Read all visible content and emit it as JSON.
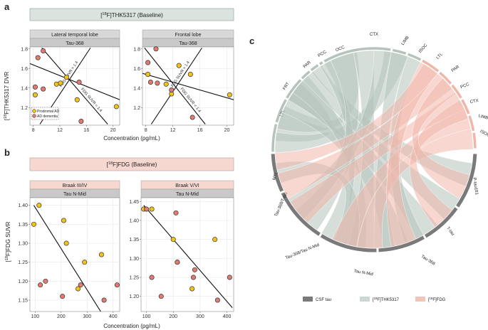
{
  "colors": {
    "prodromal": "#f2c21b",
    "dementia": "#e07b71",
    "strip_grey": "#d8d8d8",
    "strip_grey_dark": "#c9c9c9",
    "banner_grey": "#dbe3de",
    "banner_pink": "#f6d8d1",
    "chord_grey": "#b5c3bc",
    "chord_pink": "#f0b6a9",
    "csf_arc": "#7a7a7a"
  },
  "panel_labels": {
    "a": "a",
    "b": "b",
    "c": "c"
  },
  "panel_a": {
    "banner": "[18F]THK5317 (Baseline)",
    "y_label": "[18F]THK5317 DVR",
    "x_label": "Concentration (pg/mL)",
    "legend": {
      "prodromal": "Prodromal AD",
      "dementia": "AD dementia"
    }
  },
  "panel_b": {
    "banner": "[18F]FDG (Baseline)",
    "y_label": "[18F]FDG SUVR",
    "x_label": "Concentration (pg/mL)"
  },
  "panel_c": {
    "segments": [
      "CTX",
      "LIMB",
      "ISOC",
      "LTL",
      "PAR",
      "PCC",
      "CTX",
      "LIMB",
      "ISOC",
      "P-tau181",
      "T-tau",
      "Tau-368",
      "Tau N-Mid",
      "Tau-368/Tau N-Mid",
      "Tau-368/T-tau",
      "MTL",
      "LTL",
      "FRT",
      "PAR",
      "PCC",
      "OCC"
    ],
    "legend": [
      {
        "label": "CSF tau",
        "color": "#7a7a7a"
      },
      {
        "label": "[18F]THK5317",
        "color": "#cdd7d1"
      },
      {
        "label": "[18F]FDG",
        "color": "#f3c4b8"
      }
    ]
  },
  "chart_data": [
    {
      "type": "scatter",
      "panel": "a-left",
      "title": "Lateral temporal lobe",
      "subtitle": "Tau-368",
      "xlabel": "Concentration (pg/mL)",
      "ylabel": "[18F]THK5317 DVR",
      "xlim": [
        7.5,
        21
      ],
      "ylim": [
        1.02,
        1.82
      ],
      "xticks": [
        8,
        12,
        16,
        20
      ],
      "yticks": [
        1.2,
        1.4,
        1.6,
        1.8
      ],
      "series": [
        {
          "name": "Prodromal AD",
          "points": [
            [
              8.3,
              1.33
            ],
            [
              11.5,
              1.44
            ],
            [
              12.1,
              1.45
            ],
            [
              13.0,
              1.51
            ],
            [
              14.6,
              1.28
            ],
            [
              20.5,
              1.21
            ]
          ]
        },
        {
          "name": "AD dementia",
          "points": [
            [
              8.3,
              1.41
            ],
            [
              8.7,
              1.71
            ],
            [
              9.5,
              1.78
            ],
            [
              9.5,
              1.39
            ],
            [
              11.0,
              1.17
            ],
            [
              14.9,
              1.46
            ],
            [
              15.2,
              1.06
            ]
          ]
        }
      ],
      "lines": [
        {
          "x": [
            7.5,
            21
          ],
          "y": [
            1.65,
            1.28
          ]
        },
        {
          "x": [
            9.0,
            16.6
          ],
          "y": [
            1.03,
            1.81
          ]
        },
        {
          "x": [
            9.3,
            19.2
          ],
          "y": [
            1.81,
            1.03
          ]
        }
      ],
      "annotations": [
        "FDG SUVR > 1.4",
        "FDG SUVR < 1.4"
      ]
    },
    {
      "type": "scatter",
      "panel": "a-right",
      "title": "Frontal lobe",
      "subtitle": "Tau-368",
      "xlabel": "Concentration (pg/mL)",
      "xlim": [
        7.5,
        21
      ],
      "ylim": [
        1.02,
        1.82
      ],
      "xticks": [
        8,
        12,
        16,
        20
      ],
      "yticks": [
        1.2,
        1.4,
        1.6,
        1.8
      ],
      "series": [
        {
          "name": "Prodromal AD",
          "points": [
            [
              8.3,
              1.54
            ],
            [
              11.0,
              1.44
            ],
            [
              11.8,
              1.34
            ],
            [
              12.9,
              1.63
            ],
            [
              14.6,
              1.54
            ],
            [
              20.4,
              1.33
            ]
          ]
        },
        {
          "name": "AD dementia",
          "points": [
            [
              8.3,
              1.66
            ],
            [
              8.7,
              1.46
            ],
            [
              9.5,
              1.8
            ],
            [
              9.7,
              1.45
            ],
            [
              11.8,
              1.38
            ],
            [
              14.9,
              1.1
            ]
          ]
        }
      ],
      "lines": [
        {
          "x": [
            7.5,
            21
          ],
          "y": [
            1.55,
            1.28
          ]
        },
        {
          "x": [
            8.8,
            16.3
          ],
          "y": [
            1.03,
            1.81
          ]
        },
        {
          "x": [
            7.8,
            16.8
          ],
          "y": [
            1.81,
            1.03
          ]
        }
      ],
      "annotations": [
        "FDG SUVR > 1.4",
        "FDG SUVR < 1.4"
      ]
    },
    {
      "type": "scatter",
      "panel": "b-left",
      "title": "Braak III/IV",
      "subtitle": "Tau N-Mid",
      "xlabel": "Concentration (pg/mL)",
      "ylabel": "[18F]FDG SUVR",
      "xlim": [
        80,
        425
      ],
      "ylim": [
        1.12,
        1.42
      ],
      "xticks": [
        100,
        200,
        300,
        400
      ],
      "yticks": [
        1.15,
        1.2,
        1.25,
        1.3,
        1.35,
        1.4
      ],
      "series": [
        {
          "name": "Prodromal AD",
          "points": [
            [
              95,
              1.35
            ],
            [
              115,
              1.4
            ],
            [
              210,
              1.36
            ],
            [
              220,
              1.3
            ],
            [
              265,
              1.18
            ],
            [
              290,
              1.25
            ],
            [
              355,
              1.27
            ]
          ]
        },
        {
          "name": "AD dementia",
          "points": [
            [
              120,
              1.19
            ],
            [
              140,
              1.2
            ],
            [
              205,
              1.16
            ],
            [
              275,
              1.19
            ],
            [
              365,
              1.15
            ],
            [
              415,
              1.19
            ]
          ]
        }
      ],
      "lines": [
        {
          "x": [
            95,
            352
          ],
          "y": [
            1.4,
            1.12
          ]
        }
      ]
    },
    {
      "type": "scatter",
      "panel": "b-right",
      "title": "Braak V/VI",
      "subtitle": "Tau N-Mid",
      "xlabel": "Concentration (pg/mL)",
      "xlim": [
        80,
        425
      ],
      "ylim": [
        1.16,
        1.46
      ],
      "xticks": [
        100,
        200,
        300,
        400
      ],
      "yticks": [
        1.2,
        1.25,
        1.3,
        1.35,
        1.4,
        1.45
      ],
      "series": [
        {
          "name": "Prodromal AD",
          "points": [
            [
              90,
              1.43
            ],
            [
              120,
              1.43
            ],
            [
              200,
              1.35
            ],
            [
              215,
              1.29
            ],
            [
              270,
              1.22
            ],
            [
              355,
              1.35
            ]
          ]
        },
        {
          "name": "AD dementia",
          "points": [
            [
              100,
              1.43
            ],
            [
              120,
              1.25
            ],
            [
              155,
              1.2
            ],
            [
              210,
              1.42
            ],
            [
              215,
              1.29
            ],
            [
              275,
              1.25
            ],
            [
              280,
              1.27
            ],
            [
              365,
              1.19
            ],
            [
              410,
              1.25
            ]
          ]
        }
      ],
      "lines": [
        {
          "x": [
            90,
            420
          ],
          "y": [
            1.44,
            1.17
          ]
        }
      ]
    }
  ]
}
